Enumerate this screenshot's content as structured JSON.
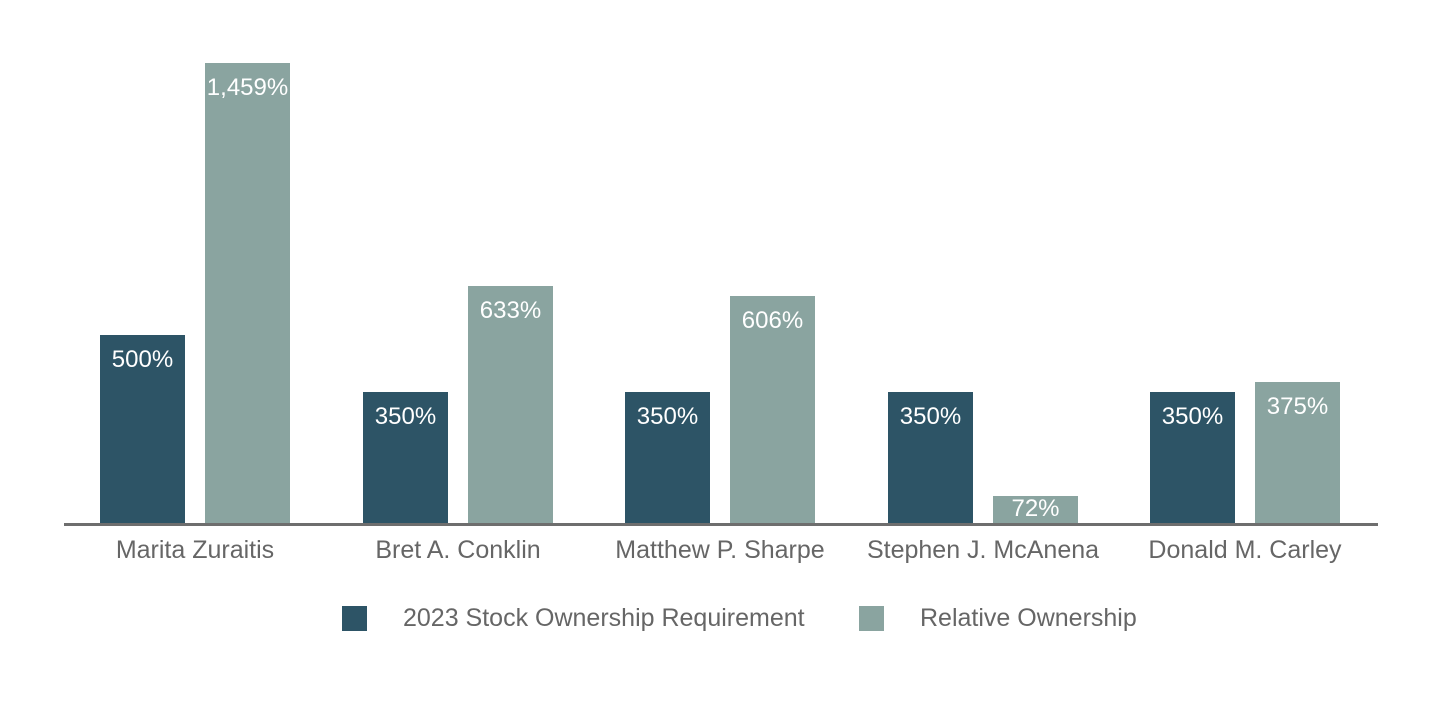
{
  "chart_data": {
    "type": "bar",
    "title": "",
    "xlabel": "",
    "ylabel": "",
    "categories": [
      "Marita Zuraitis",
      "Bret A. Conklin",
      "Matthew P. Sharpe",
      "Stephen J. McAnena",
      "Donald M. Carley"
    ],
    "series": [
      {
        "name": "2023 Stock Ownership Requirement",
        "color": "#2D5466",
        "values": [
          500,
          350,
          350,
          350,
          350
        ],
        "labels": [
          "500%",
          "350%",
          "350%",
          "350%",
          "350%"
        ]
      },
      {
        "name": "Relative Ownership",
        "color": "#8AA4A0",
        "values": [
          1459,
          633,
          606,
          72,
          375
        ],
        "labels": [
          "1,459%",
          "633%",
          "606%",
          "72%",
          "375%"
        ]
      }
    ],
    "ylim": [
      0,
      1230
    ],
    "grid": false,
    "legend_position": "bottom",
    "value_label_color": "#FFFFFF",
    "axis_line_color": "#6E6E6E",
    "category_label_color": "#666666"
  }
}
